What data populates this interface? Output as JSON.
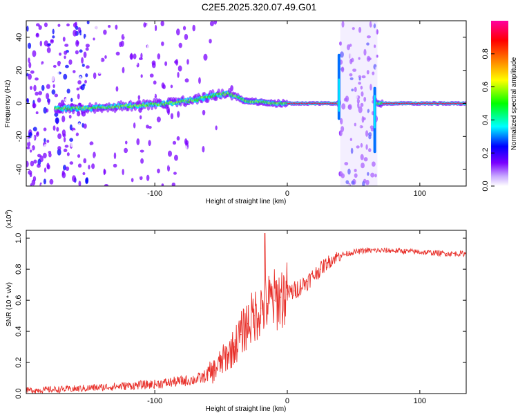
{
  "title": "C2E5.2025.320.07.49.G01",
  "chart_data": [
    {
      "type": "heatmap",
      "xlabel": "Height of straight line (km)",
      "ylabel": "Frequency (Hz)",
      "xlim": [
        -197,
        135
      ],
      "ylim": [
        -50,
        50
      ],
      "x_ticks": [
        -100,
        0,
        100
      ],
      "y_ticks": [
        -40,
        -20,
        0,
        20,
        40
      ],
      "x_tick_labels": [
        "-100",
        "0",
        "100"
      ],
      "y_tick_labels": [
        "-40",
        "-20",
        "0",
        "20",
        "40"
      ],
      "colorbar": {
        "label": "Normalized spectral amplitude",
        "range": [
          0,
          1
        ],
        "ticks": [
          0,
          0.2,
          0.4,
          0.6,
          0.8
        ],
        "tick_labels": [
          "0.0",
          "0.2",
          "0.4",
          "0.6",
          "0.8"
        ],
        "colors": [
          "#ffffff",
          "#7a00ff",
          "#0000ff",
          "#00ffff",
          "#00ff00",
          "#ffff00",
          "#ff8000",
          "#ff0000",
          "#ff00a0"
        ]
      },
      "ridge": {
        "x": [
          -170,
          -150,
          -130,
          -110,
          -90,
          -70,
          -55,
          -45,
          -38,
          -30,
          -20,
          -10,
          0,
          20,
          35
        ],
        "freq": [
          -3,
          -3,
          -2,
          -1,
          0,
          2,
          5,
          6,
          4,
          1,
          1,
          0,
          0,
          0,
          0
        ]
      },
      "noise_band": [
        40,
        68
      ],
      "clean_segments": [
        [
          0,
          38
        ],
        [
          72,
          135
        ]
      ]
    },
    {
      "type": "line",
      "xlabel": "Height of straight line (km)",
      "ylabel": "SNR (10 * v/v)",
      "multiplier_label": "(x10",
      "multiplier_exp": "4",
      "multiplier_close": ")",
      "xlim": [
        -197,
        135
      ],
      "ylim": [
        0,
        1.05
      ],
      "x_ticks": [
        -100,
        0,
        100
      ],
      "y_ticks": [
        0,
        0.2,
        0.4,
        0.6,
        0.8,
        1.0
      ],
      "x_tick_labels": [
        "-100",
        "0",
        "100"
      ],
      "y_tick_labels": [
        "0.0",
        "0.2",
        "0.4",
        "0.6",
        "0.8",
        "1.0"
      ],
      "color": "#e8302a",
      "series": [
        {
          "x": [
            -197,
            -180,
            -160,
            -140,
            -120,
            -100,
            -90,
            -80,
            -70,
            -65,
            -60,
            -55,
            -50,
            -45,
            -40,
            -35,
            -30,
            -25,
            -20,
            -15,
            -10,
            -5,
            0,
            5,
            10,
            15,
            20,
            25,
            30,
            35,
            40,
            45,
            50,
            60,
            80,
            100,
            120,
            135
          ],
          "values": [
            0.02,
            0.025,
            0.03,
            0.04,
            0.05,
            0.06,
            0.07,
            0.08,
            0.09,
            0.1,
            0.12,
            0.15,
            0.2,
            0.25,
            0.3,
            0.38,
            0.45,
            0.5,
            0.55,
            0.58,
            0.6,
            0.62,
            0.64,
            0.66,
            0.69,
            0.72,
            0.76,
            0.8,
            0.84,
            0.87,
            0.89,
            0.9,
            0.91,
            0.92,
            0.92,
            0.91,
            0.9,
            0.9
          ]
        }
      ],
      "spike": {
        "x": -17,
        "value": 1.03
      }
    }
  ]
}
